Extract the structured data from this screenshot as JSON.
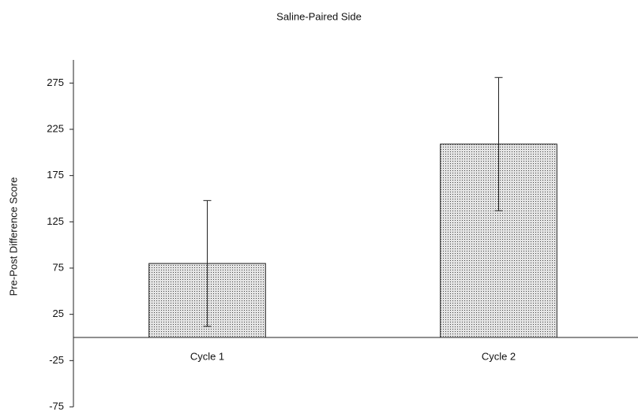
{
  "chart_data": {
    "type": "bar",
    "title": "Saline-Paired Side",
    "ylabel": "Pre-Post Difference Score",
    "categories": [
      "Cycle 1",
      "Cycle 2"
    ],
    "values": [
      80,
      209
    ],
    "errors": [
      68,
      72
    ],
    "color": "#e4e4e4",
    "ylim": [
      -75,
      300
    ],
    "yticks": [
      -75,
      -25,
      25,
      75,
      125,
      175,
      225,
      275
    ],
    "grid": false
  }
}
